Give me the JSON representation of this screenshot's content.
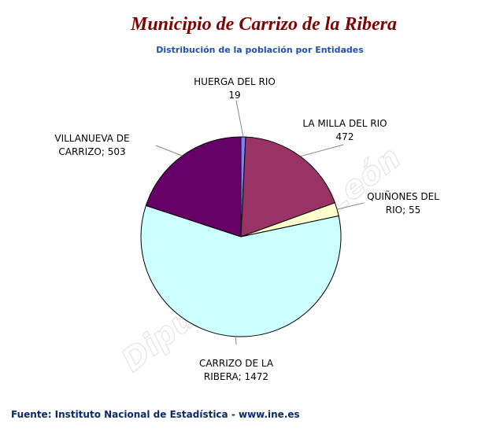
{
  "chart_data": {
    "type": "pie",
    "title": "Municipio de Carrizo de la Ribera",
    "subtitle": "Distribución de la población por Entidades",
    "values": [
      19,
      472,
      55,
      1472,
      503
    ],
    "value_labels": [
      [
        "HUERGA DEL RIO",
        "19"
      ],
      [
        "LA MILLA DEL RIO",
        "472"
      ],
      [
        "QUIÑONES DEL",
        "RIO; 55"
      ],
      [
        "CARRIZO DE LA",
        "RIBERA; 1472"
      ],
      [
        "VILLANUEVA DE",
        "CARRIZO; 503"
      ]
    ],
    "colors": [
      "#8080ff",
      "#993366",
      "#ffffcc",
      "#ccffff",
      "#660066"
    ],
    "watermark": "Diputación de León",
    "source": "Fuente: Instituto Nacional de Estadística - www.ine.es"
  }
}
